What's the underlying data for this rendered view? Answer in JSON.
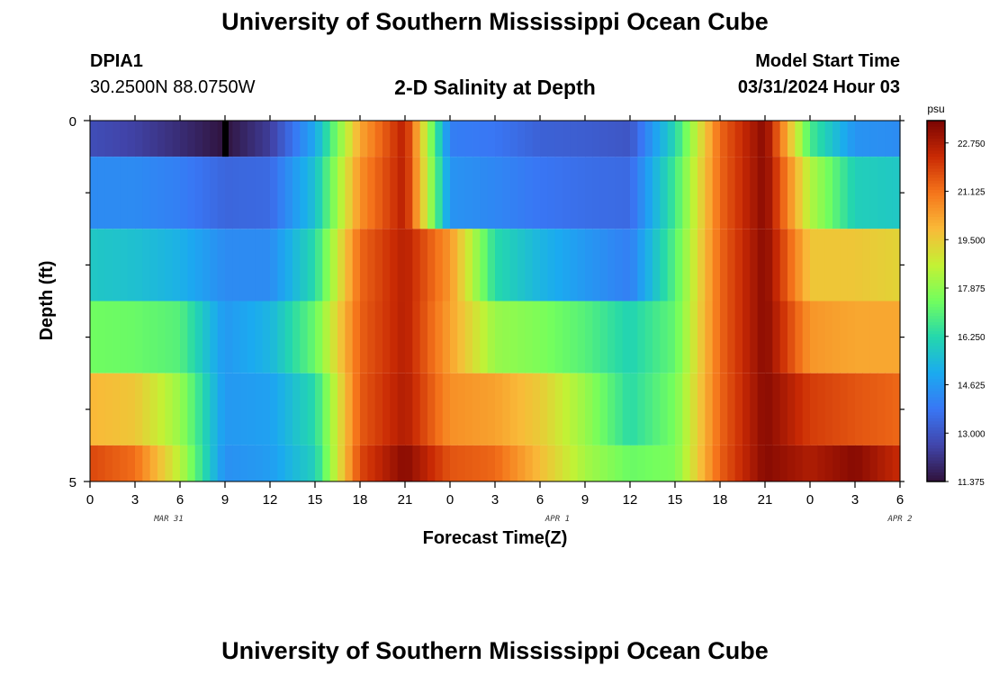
{
  "header": {
    "title": "University of Southern Mississippi Ocean Cube",
    "station_id": "DPIA1",
    "coords": "30.2500N  88.0750W",
    "subtitle": "2-D Salinity at Depth",
    "start_label": "Model Start Time",
    "start_value": "03/31/2024 Hour 03"
  },
  "footer": {
    "title": "University of Southern Mississippi Ocean Cube"
  },
  "chart_data": {
    "type": "heatmap",
    "title": "2-D Salinity at Depth",
    "xlabel": "Forecast Time(Z)",
    "ylabel": "Depth (ft)",
    "colorbar_label": "psu",
    "colormap": "turbo",
    "vmin": 11.375,
    "vmax": 23.5,
    "colorbar_ticks": [
      "22.750",
      "21.125",
      "19.500",
      "17.875",
      "16.250",
      "14.625",
      "13.000",
      "11.375"
    ],
    "colorbar_tick_values": [
      22.75,
      21.125,
      19.5,
      17.875,
      16.25,
      14.625,
      13.0,
      11.375
    ],
    "y_ticks": [
      "0",
      "5"
    ],
    "y_range": [
      0,
      5
    ],
    "x_range_hours": [
      0,
      54
    ],
    "x_tick_labels": [
      "0",
      "3",
      "6",
      "9",
      "12",
      "15",
      "18",
      "21",
      "0",
      "3",
      "6",
      "9",
      "12",
      "15",
      "18",
      "21",
      "0",
      "3",
      "6"
    ],
    "date_labels": [
      "MAR 31",
      "APR 1",
      "APR 2"
    ],
    "depth_layer_edges": [
      0,
      0.5,
      1.5,
      2.5,
      3.5,
      4.5,
      5
    ],
    "profile_hours": [
      0,
      3,
      6,
      9,
      12,
      15,
      18,
      21,
      24,
      27,
      30,
      33,
      36,
      39,
      42,
      45,
      48,
      51,
      54
    ],
    "profiles": [
      [
        12.8,
        14.3,
        15.8,
        17.4,
        19.9,
        21.8
      ],
      [
        12.5,
        14.3,
        15.6,
        17.3,
        19.6,
        21.2
      ],
      [
        12.0,
        14.0,
        15.2,
        17.0,
        18.0,
        18.5
      ],
      [
        11.4,
        13.4,
        14.3,
        14.6,
        14.6,
        14.4
      ],
      [
        12.4,
        13.5,
        14.3,
        15.3,
        14.8,
        14.7
      ],
      [
        15.0,
        15.6,
        16.3,
        17.3,
        16.3,
        16.0
      ],
      [
        20.2,
        20.6,
        21.3,
        21.4,
        21.5,
        21.8
      ],
      [
        22.6,
        22.6,
        22.6,
        22.6,
        22.7,
        23.3
      ],
      [
        14.0,
        14.5,
        20.5,
        20.3,
        20.6,
        21.6
      ],
      [
        13.8,
        14.2,
        16.3,
        18.0,
        20.3,
        21.3
      ],
      [
        13.3,
        13.8,
        15.3,
        17.6,
        19.5,
        19.8
      ],
      [
        13.2,
        13.6,
        14.6,
        17.0,
        18.0,
        18.2
      ],
      [
        13.0,
        13.5,
        14.0,
        16.1,
        16.3,
        17.3
      ],
      [
        16.2,
        16.7,
        17.0,
        17.2,
        17.5,
        17.6
      ],
      [
        21.3,
        21.3,
        21.3,
        21.3,
        21.3,
        21.4
      ],
      [
        23.3,
        23.3,
        23.3,
        23.3,
        23.3,
        23.3
      ],
      [
        16.8,
        18.4,
        19.6,
        20.5,
        22.0,
        22.7
      ],
      [
        14.5,
        16.0,
        19.6,
        20.2,
        21.6,
        23.3
      ],
      [
        14.3,
        15.8,
        19.3,
        20.2,
        21.3,
        22.3
      ]
    ],
    "min_marker": {
      "hour": 9,
      "depth_range": [
        0,
        0.5
      ],
      "value": 11.375
    }
  }
}
